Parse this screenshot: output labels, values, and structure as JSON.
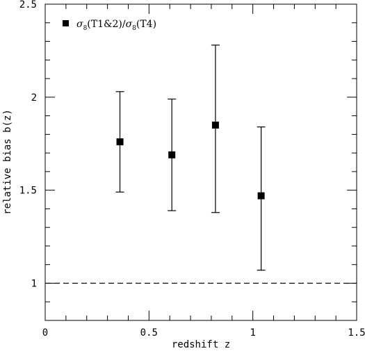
{
  "chart_data": {
    "type": "scatter",
    "xlabel": "redshift z",
    "ylabel": "relative bias b(z)",
    "xlim": [
      0,
      1.5
    ],
    "ylim": [
      0.8,
      2.5
    ],
    "xticks": [
      0,
      0.5,
      1,
      1.5
    ],
    "xtick_labels": [
      "0",
      "0.5",
      "1",
      "1.5"
    ],
    "yticks": [
      1,
      1.5,
      2,
      2.5
    ],
    "ytick_labels": [
      "1",
      "1.5",
      "2",
      "2.5"
    ],
    "legend": {
      "placement": "top-left",
      "sigma": "σ",
      "sub": "8",
      "part1": "(T1&2)/",
      "part2": "(T4)"
    },
    "reference_line": {
      "y": 1,
      "style": "dashed"
    },
    "grid": false,
    "series": [
      {
        "name": "σ8(T1&2)/σ8(T4)",
        "marker": "square",
        "points": [
          {
            "x": 0.36,
            "y": 1.76,
            "y_low": 1.49,
            "y_high": 2.03
          },
          {
            "x": 0.61,
            "y": 1.69,
            "y_low": 1.39,
            "y_high": 1.99
          },
          {
            "x": 0.82,
            "y": 1.85,
            "y_low": 1.38,
            "y_high": 2.28
          },
          {
            "x": 1.04,
            "y": 1.47,
            "y_low": 1.07,
            "y_high": 1.84
          }
        ]
      }
    ]
  }
}
